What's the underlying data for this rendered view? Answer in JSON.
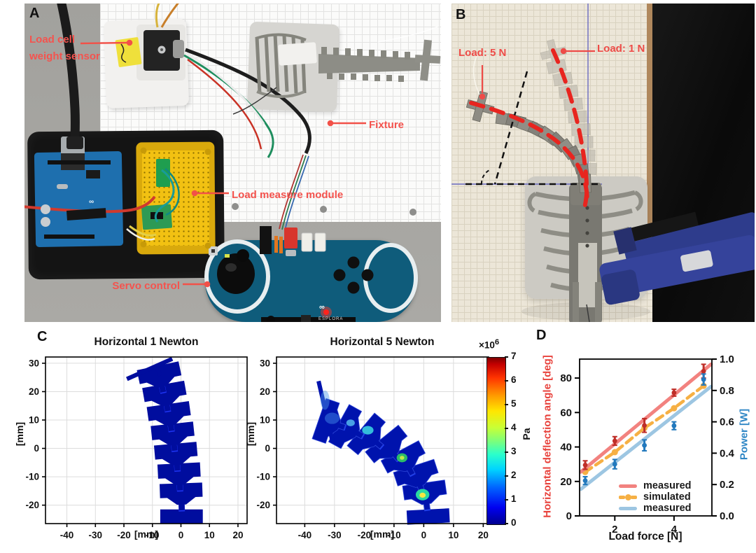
{
  "figure": {
    "kind": "scientific paper figure",
    "panel_letters": [
      "A",
      "B",
      "C",
      "D"
    ]
  },
  "panels": {
    "a": {
      "letter": "A",
      "labels": {
        "load_cell_1": "Load cell",
        "load_cell_2": "weight sensor",
        "fixture": "Fixture",
        "load_measure": "Load measure module",
        "servo": "Servo control",
        "esplora": "ESPLORA",
        "logo": "∞"
      },
      "annotation_color": "#f4534e"
    },
    "b": {
      "letter": "B",
      "labels": {
        "load5": "Load: 5 N",
        "load1": "Load: 1 N"
      },
      "annotation_color": "#ee4b47"
    },
    "c": {
      "letter": "C"
    },
    "d": {
      "letter": "D"
    }
  },
  "chart_data": [
    {
      "type": "fea-deformation",
      "title": "Horizontal 1 Newton",
      "xlabel": "[mm]",
      "ylabel": "[mm]",
      "xlim": [
        -47.5,
        23.2
      ],
      "ylim": [
        -26.5,
        32.2
      ],
      "xticks": [
        -40,
        -30,
        -20,
        -10,
        0,
        10,
        20
      ],
      "yticks": [
        30,
        20,
        10,
        0,
        -10,
        -20
      ],
      "grid": true,
      "colormap": "jet",
      "body_color": "#000d9e",
      "stem_color": "#1d33f0",
      "base": {
        "x": 0.2,
        "y": -24,
        "w": 15,
        "h": 5,
        "rot": 0
      },
      "segments": [
        {
          "x": 0.3,
          "y": -21.8,
          "rot": 2
        },
        {
          "x": -0.3,
          "y": -14.8,
          "rot": 3
        },
        {
          "x": -1.2,
          "y": -7.8,
          "rot": 5
        },
        {
          "x": -2.2,
          "y": -0.8,
          "rot": 6
        },
        {
          "x": -3.3,
          "y": 6.2,
          "rot": 8
        },
        {
          "x": -4.6,
          "y": 13.2,
          "rot": 10
        },
        {
          "x": -6.2,
          "y": 19.8,
          "rot": 12
        }
      ],
      "top_bar": {
        "x": -11,
        "y": 28,
        "rot": 24,
        "len": 17.5,
        "stem": true
      }
    },
    {
      "type": "fea-deformation",
      "title": "Horizontal 5 Newton",
      "xlabel": "[mm]",
      "ylabel": "[mm]",
      "xlim": [
        -49.5,
        21.8
      ],
      "ylim": [
        -26.5,
        32.2
      ],
      "xticks": [
        -40,
        -30,
        -20,
        -10,
        0,
        10,
        20
      ],
      "yticks": [
        30,
        20,
        10,
        0,
        -10,
        -20
      ],
      "grid": true,
      "colormap": "jet",
      "body_color": "#0013ad",
      "stem_color": "#1d3df0",
      "edge_color": "#2d47d8",
      "base": {
        "x": 1.5,
        "y": -24,
        "w": 15,
        "h": 5,
        "rot": 3
      },
      "segments": [
        {
          "x": 1.2,
          "y": -21.6,
          "rot": 8
        },
        {
          "x": -0.6,
          "y": -15.2,
          "rot": 18
        },
        {
          "x": -3.8,
          "y": -9.2,
          "rot": 28
        },
        {
          "x": -8.4,
          "y": -3.9,
          "rot": 39
        },
        {
          "x": -14.2,
          "y": 0.6,
          "rot": 50
        },
        {
          "x": -20.6,
          "y": 4.3,
          "rot": 61
        },
        {
          "x": -26.6,
          "y": 7.4,
          "rot": 71
        }
      ],
      "top_bar": {
        "x": -33,
        "y": 13,
        "rot": 103,
        "len": 22,
        "stem": false
      },
      "stress_spots": [
        {
          "x": -0.4,
          "y": -16.3,
          "rx": 2.4,
          "ry": 2.0,
          "c": "#2be3a0",
          "o": 0.95
        },
        {
          "x": -0.4,
          "y": -16.5,
          "rx": 1.1,
          "ry": 0.9,
          "c": "#ffe93d",
          "o": 0.95
        },
        {
          "x": -7.3,
          "y": -3.3,
          "rx": 1.9,
          "ry": 1.6,
          "c": "#31d060",
          "o": 0.9
        },
        {
          "x": -7.3,
          "y": -3.3,
          "rx": 0.8,
          "ry": 0.7,
          "c": "#d2ee45",
          "o": 0.9
        },
        {
          "x": -18.8,
          "y": 6.4,
          "rx": 2.0,
          "ry": 1.5,
          "c": "#38cfe0",
          "o": 0.9
        },
        {
          "x": -24.6,
          "y": 9.0,
          "rx": 1.5,
          "ry": 1.2,
          "c": "#55b8ef",
          "o": 0.85
        },
        {
          "x": -30.8,
          "y": 10.6,
          "rx": 2.6,
          "ry": 2.0,
          "c": "#3f86e8",
          "o": 0.5
        },
        {
          "x": -33.2,
          "y": 17.0,
          "rx": 1.6,
          "ry": 3.4,
          "c": "#4e9aec",
          "o": 0.45
        }
      ],
      "colorbar": {
        "unit": "Pa",
        "scale_label": "×10",
        "scale_sup": "6",
        "ticks": [
          0,
          1,
          2,
          3,
          4,
          5,
          6,
          7
        ],
        "vmin": 0,
        "vmax": 7,
        "colormap": "jet"
      }
    },
    {
      "type": "line",
      "xlabel": "Load force [N]",
      "ylabel_left": "Horizontal deflection angle [deg]",
      "ylabel_right": "Power [W]",
      "x": [
        1,
        2,
        3,
        4,
        5
      ],
      "xlim": [
        0.81,
        5.28
      ],
      "xticks": [
        2,
        4
      ],
      "ylim_left": [
        0,
        91
      ],
      "yticks_left": [
        0,
        20,
        40,
        60,
        80
      ],
      "ylim_right": [
        0,
        1
      ],
      "yticks_right": [
        "0.0",
        "0.2",
        "0.4",
        "0.6",
        "0.8",
        "1.0"
      ],
      "grid": false,
      "legend_position": "lower right",
      "series": [
        {
          "name": "measured",
          "quantity": "deflection angle fit",
          "axis": "left",
          "style": "fit-line",
          "color": "#f2827f",
          "x": [
            0.85,
            5.25
          ],
          "y": [
            25.5,
            88
          ]
        },
        {
          "name": "simulated",
          "quantity": "deflection angle",
          "axis": "left",
          "style": "dashed-markers",
          "color": "#f6b044",
          "y": [
            25.5,
            37,
            51,
            62.5,
            75.5
          ]
        },
        {
          "name": "measured",
          "quantity": "power fit",
          "axis": "right",
          "style": "fit-line",
          "color": "#9dc6e2",
          "x": [
            0.85,
            5.25
          ],
          "y": [
            0.17,
            0.825
          ]
        },
        {
          "name": "measured",
          "quantity": "deflection angle",
          "axis": "left",
          "style": "points-error",
          "color": "#bf2e28",
          "y": [
            29.5,
            43.5,
            52.5,
            71.5,
            84
          ],
          "err": [
            2.5,
            2.5,
            4,
            2,
            4
          ]
        },
        {
          "name": "measured",
          "quantity": "power",
          "axis": "right",
          "style": "points-error",
          "color": "#2279bd",
          "y": [
            0.225,
            0.33,
            0.45,
            0.575,
            0.87
          ],
          "err": [
            0.025,
            0.03,
            0.035,
            0.025,
            0.035
          ]
        }
      ],
      "legend": [
        {
          "label": "measured",
          "color": "#f2827f",
          "style": "solid"
        },
        {
          "label": "simulated",
          "color": "#f6b044",
          "style": "dashed-dot"
        },
        {
          "label": "measured",
          "color": "#9dc6e2",
          "style": "solid"
        }
      ]
    }
  ]
}
